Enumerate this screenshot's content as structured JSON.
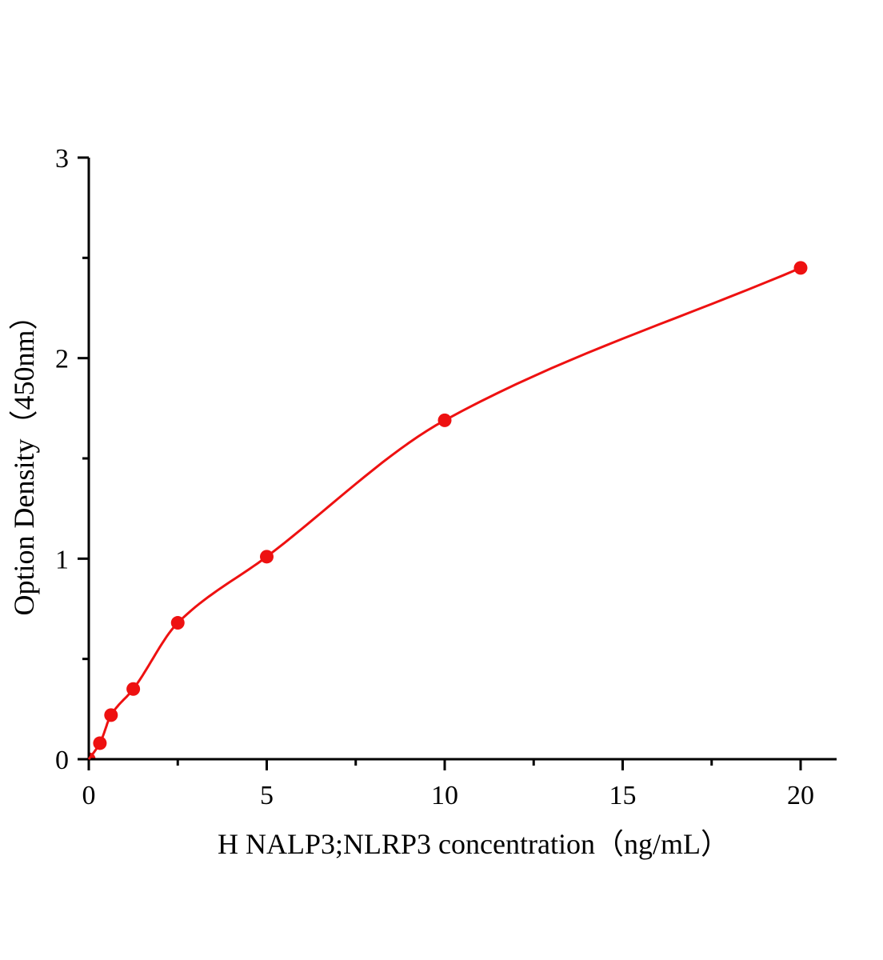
{
  "chart_data": {
    "type": "scatter",
    "title": "",
    "xlabel": "H NALP3;NLRP3 concentration（ng/mL）",
    "ylabel": "Option Density（450nm）",
    "xlim": [
      0,
      21
    ],
    "ylim": [
      0,
      3
    ],
    "xticks": [
      "0",
      "5",
      "10",
      "15",
      "20"
    ],
    "yticks": [
      "0",
      "1",
      "2",
      "3"
    ],
    "grid": false,
    "legend": "none",
    "series": [
      {
        "x": [
          0,
          0.3125,
          0.625,
          1.25,
          2.5,
          5,
          10,
          20
        ],
        "y": [
          0.0,
          0.08,
          0.22,
          0.35,
          0.68,
          1.01,
          1.69,
          2.45
        ],
        "fit_curve": true,
        "color": "#ee1111"
      }
    ]
  }
}
